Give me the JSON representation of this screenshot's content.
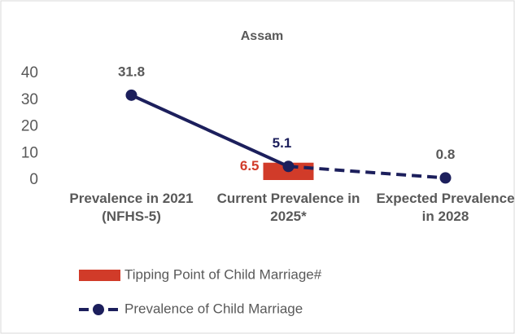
{
  "chart_data": {
    "type": "bar_line",
    "title": "Assam",
    "categories": [
      "Prevalence in 2021 (NFHS-5)",
      "Current Prevalence in 2025*",
      "Expected Prevalence in 2028"
    ],
    "series": [
      {
        "name": "Tipping Point of Child Marriage#",
        "type": "bar",
        "color": "#d13b29",
        "values": [
          null,
          6.5,
          null
        ]
      },
      {
        "name": "Prevalence of Child Marriage",
        "type": "line",
        "color": "#1c1f5c",
        "values": [
          31.8,
          5.1,
          0.8
        ],
        "dashed_segments": [
          1
        ]
      }
    ],
    "ylim": [
      0,
      40
    ],
    "yticks": [
      0,
      10,
      20,
      30,
      40
    ],
    "grid": false,
    "legend": "bottom"
  }
}
